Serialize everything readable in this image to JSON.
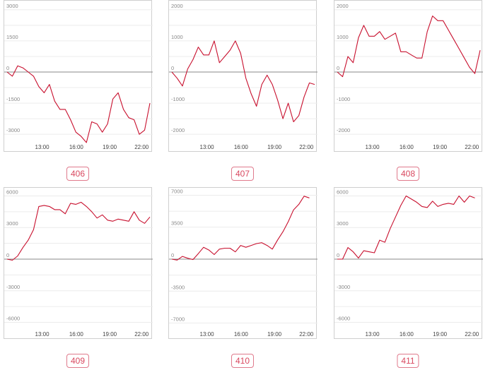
{
  "chart_data": [
    {
      "type": "line",
      "label": "406",
      "ylim": [
        -3300,
        3300
      ],
      "yticks": [
        3000,
        1500,
        0,
        -1500,
        -3000
      ],
      "xticks": [
        "13:00",
        "16:00",
        "19:00",
        "22:00"
      ],
      "color": "#c8102e",
      "series": [
        {
          "values": [
            0,
            -200,
            300,
            200,
            0,
            -200,
            -700,
            -1000,
            -600,
            -1400,
            -1800,
            -1800,
            -2300,
            -2900,
            -3100,
            -3400,
            -2400,
            -2500,
            -2900,
            -2500,
            -1300,
            -1000,
            -1800,
            -2200,
            -2300,
            -3000,
            -2800,
            -1500
          ]
        }
      ]
    },
    {
      "type": "line",
      "label": "407",
      "ylim": [
        -2200,
        2200
      ],
      "yticks": [
        2000,
        1000,
        0,
        -1000,
        -2000
      ],
      "xticks": [
        "13:00",
        "16:00",
        "19:00",
        "22:00"
      ],
      "color": "#c8102e",
      "series": [
        {
          "values": [
            0,
            -200,
            -450,
            100,
            400,
            800,
            550,
            550,
            1000,
            300,
            500,
            700,
            1000,
            600,
            -200,
            -700,
            -1100,
            -400,
            -100,
            -400,
            -900,
            -1500,
            -1000,
            -1600,
            -1400,
            -800,
            -350,
            -400
          ]
        }
      ]
    },
    {
      "type": "line",
      "label": "408",
      "ylim": [
        -2200,
        2200
      ],
      "yticks": [
        2000,
        1000,
        0,
        -1000,
        -2000
      ],
      "xticks": [
        "13:00",
        "16:00",
        "19:00",
        "22:00"
      ],
      "color": "#c8102e",
      "series": [
        {
          "values": [
            0,
            -150,
            500,
            300,
            1100,
            1500,
            1150,
            1150,
            1300,
            1050,
            1150,
            1250,
            650,
            650,
            550,
            450,
            450,
            1300,
            1800,
            1650,
            1650,
            1350,
            1050,
            750,
            450,
            150,
            -50,
            700
          ]
        }
      ]
    },
    {
      "type": "line",
      "label": "409",
      "ylim": [
        -6500,
        6500
      ],
      "yticks": [
        6000,
        3000,
        0,
        -3000,
        -6000
      ],
      "xticks": [
        "13:00",
        "16:00",
        "19:00",
        "22:00"
      ],
      "color": "#c8102e",
      "series": [
        {
          "values": [
            0,
            -100,
            300,
            1100,
            1800,
            2800,
            5000,
            5100,
            5000,
            4700,
            4700,
            4300,
            5300,
            5200,
            5400,
            5000,
            4500,
            3900,
            4200,
            3700,
            3600,
            3800,
            3700,
            3600,
            4500,
            3700,
            3400,
            4000
          ]
        }
      ]
    },
    {
      "type": "line",
      "label": "410",
      "ylim": [
        -7500,
        7500
      ],
      "yticks": [
        7000,
        3500,
        0,
        -3500,
        -7000
      ],
      "xticks": [
        "13:00",
        "16:00",
        "19:00",
        "22:00"
      ],
      "color": "#c8102e",
      "series": [
        {
          "values": [
            0,
            -100,
            300,
            100,
            -50,
            600,
            1300,
            1000,
            500,
            1100,
            1200,
            1200,
            800,
            1500,
            1300,
            1500,
            1700,
            1800,
            1500,
            1100,
            2100,
            3000,
            4100,
            5400,
            6000,
            6900,
            6700
          ]
        }
      ]
    },
    {
      "type": "line",
      "label": "411",
      "ylim": [
        -6500,
        6500
      ],
      "yticks": [
        6000,
        3000,
        0,
        -3000,
        -6000
      ],
      "xticks": [
        "13:00",
        "16:00",
        "19:00",
        "22:00"
      ],
      "color": "#c8102e",
      "series": [
        {
          "values": [
            0,
            0,
            1100,
            700,
            100,
            800,
            700,
            600,
            1800,
            1600,
            2900,
            4000,
            5100,
            6000,
            5700,
            5400,
            5000,
            4900,
            5500,
            5000,
            5200,
            5300,
            5200,
            6000,
            5400,
            6000,
            5800
          ]
        }
      ]
    }
  ]
}
